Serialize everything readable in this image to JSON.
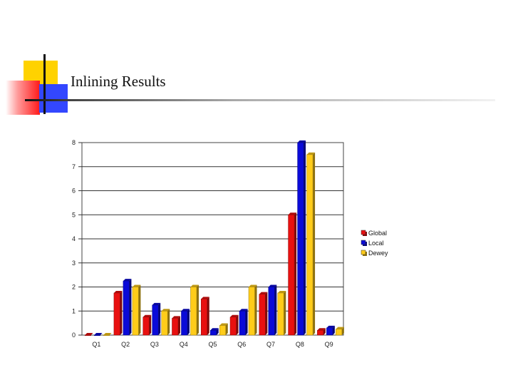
{
  "slide": {
    "title": "Inlining Results"
  },
  "chart_data": {
    "type": "bar",
    "categories": [
      "Q1",
      "Q2",
      "Q3",
      "Q4",
      "Q5",
      "Q6",
      "Q7",
      "Q8",
      "Q9"
    ],
    "series": [
      {
        "name": "Global",
        "color": "#e81010",
        "values": [
          0,
          1.75,
          0.75,
          0.7,
          1.5,
          0.75,
          1.7,
          5.0,
          0.2
        ]
      },
      {
        "name": "Local",
        "color": "#0a0ad8",
        "values": [
          0,
          2.25,
          1.25,
          1.0,
          0.2,
          1.0,
          2.0,
          8.0,
          0.3
        ]
      },
      {
        "name": "Dewey",
        "color": "#ffcc1a",
        "values": [
          0,
          2.0,
          1.0,
          2.0,
          0.4,
          2.0,
          1.75,
          7.5,
          0.25
        ]
      }
    ],
    "y_ticks": [
      "0",
      "1",
      "2",
      "3",
      "4",
      "5",
      "6",
      "7",
      "8"
    ],
    "ylim": [
      0,
      8
    ],
    "grid": true,
    "legend_position": "right"
  }
}
